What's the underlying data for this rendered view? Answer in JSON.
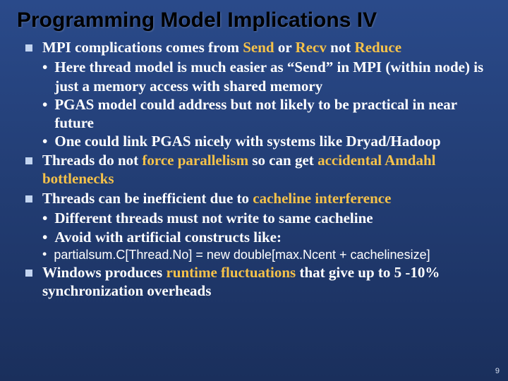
{
  "colors": {
    "bg_top": "#2a4a8a",
    "bg_bottom": "#1a2f5c",
    "title_color": "#000000",
    "text_color": "#ffffff",
    "highlight_color": "#f5c24a",
    "bullet_square_color": "#c2d4f0"
  },
  "fonts": {
    "title_family": "Arial",
    "title_size_pt": 30,
    "title_weight": "bold",
    "body_family": "Times New Roman",
    "body_size_pt": 21,
    "body_weight": "bold",
    "code_size_pt": 18
  },
  "title": "Programming Model Implications IV",
  "page_number": "9",
  "b1_a": "MPI complications comes from ",
  "b1_b": "Send",
  "b1_c": " or ",
  "b1_d": "Recv",
  "b1_e": " not ",
  "b1_f": "Reduce",
  "s1_1": "Here thread model is much easier as “Send” in MPI (within node) is just a memory access with shared memory",
  "s1_2": "PGAS model could address but not likely to be practical in near future",
  "s1_3": "One could link PGAS nicely with systems like Dryad/Hadoop",
  "b2_a": "Threads do not ",
  "b2_b": "force parallelism",
  "b2_c": " so can get ",
  "b2_d": "accidental Amdahl bottlenecks",
  "b3_a": "Threads can be inefficient due to ",
  "b3_b": "cacheline interference",
  "s3_1": "Different threads must not write to same cacheline",
  "s3_2": "Avoid with artificial constructs like:",
  "s3_3": "partialsum.C[Thread.No] = new double[max.Ncent + cachelinesize]",
  "b4_a": "Windows produces ",
  "b4_b": "runtime fluctuations",
  "b4_c": " that give up to 5 -10% synchronization overheads"
}
